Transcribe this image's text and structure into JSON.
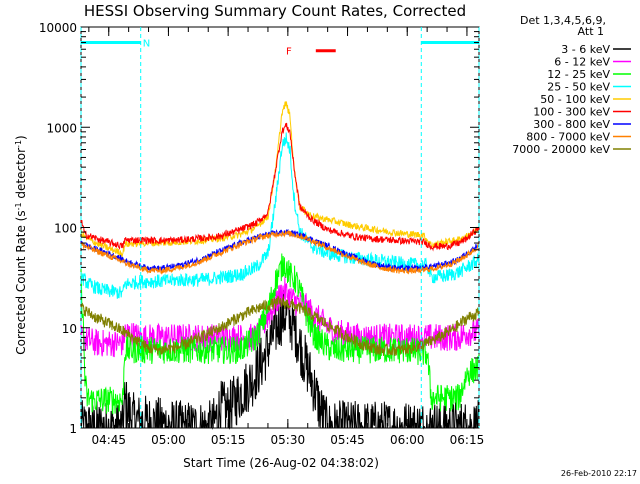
{
  "chart_data": {
    "type": "line",
    "title": "HESSI Observing Summary Count Rates, Corrected",
    "xlabel": "Start Time (26-Aug-02 04:38:02)",
    "ylabel": "Corrected Count Rate (s-1 detector-1)",
    "ylabel_parts": {
      "main": "Corrected Count Rate (s",
      "sup1": "-1",
      "mid": " detector",
      "sup2": "-1",
      "end": ")"
    },
    "x_unit": "minutes after 04:38:02 UT",
    "xlim": [
      0,
      100
    ],
    "ylim": [
      1,
      10000
    ],
    "yscale": "log",
    "x_ticks": [
      {
        "x": 6.97,
        "label": "04:45"
      },
      {
        "x": 21.97,
        "label": "05:00"
      },
      {
        "x": 36.97,
        "label": "05:15"
      },
      {
        "x": 51.97,
        "label": "05:30"
      },
      {
        "x": 66.97,
        "label": "05:45"
      },
      {
        "x": 81.97,
        "label": "06:00"
      },
      {
        "x": 96.97,
        "label": "06:15"
      }
    ],
    "y_ticks": [
      {
        "y": 1,
        "label": "1"
      },
      {
        "y": 10,
        "label": "10"
      },
      {
        "y": 100,
        "label": "100"
      },
      {
        "y": 1000,
        "label": "1000"
      },
      {
        "y": 10000,
        "label": "10000"
      }
    ],
    "legend": {
      "heading_lines": [
        "Det 1,3,4,5,6,9,",
        "Att 1"
      ],
      "position": "right"
    },
    "series": [
      {
        "name": "3 - 6 keV",
        "color": "#000000",
        "points": [
          [
            0,
            1
          ],
          [
            10.5,
            1
          ],
          [
            11,
            1.8
          ],
          [
            13,
            1.2
          ],
          [
            25,
            1
          ],
          [
            33,
            1
          ],
          [
            35,
            1.6
          ],
          [
            37,
            1.5
          ],
          [
            40,
            2.2
          ],
          [
            43,
            3.0
          ],
          [
            46,
            5.0
          ],
          [
            48,
            8.0
          ],
          [
            50,
            12
          ],
          [
            51.5,
            14
          ],
          [
            52.5,
            12
          ],
          [
            54,
            9
          ],
          [
            56,
            5
          ],
          [
            58,
            3
          ],
          [
            60,
            1.6
          ],
          [
            62,
            1
          ],
          [
            100,
            1
          ]
        ]
      },
      {
        "name": "6 - 12 keV",
        "color": "#ff00ff",
        "points": [
          [
            0,
            8
          ],
          [
            4,
            7
          ],
          [
            10.5,
            7
          ],
          [
            11,
            9
          ],
          [
            15,
            8
          ],
          [
            20,
            8
          ],
          [
            30,
            8
          ],
          [
            40,
            8
          ],
          [
            44,
            8
          ],
          [
            47,
            13
          ],
          [
            49,
            18
          ],
          [
            51,
            24
          ],
          [
            52,
            21
          ],
          [
            54,
            18
          ],
          [
            56,
            17
          ],
          [
            58,
            14
          ],
          [
            61,
            11
          ],
          [
            64,
            9
          ],
          [
            70,
            8
          ],
          [
            82,
            8
          ],
          [
            90,
            8
          ],
          [
            95,
            8
          ],
          [
            97,
            9
          ],
          [
            100,
            9
          ]
        ]
      },
      {
        "name": "12 - 25 keV",
        "color": "#00ff00",
        "points": [
          [
            0,
            30
          ],
          [
            0.6,
            10
          ],
          [
            1,
            3
          ],
          [
            1.5,
            2
          ],
          [
            3,
            1.9
          ],
          [
            10.5,
            1.9
          ],
          [
            11,
            6
          ],
          [
            20,
            6
          ],
          [
            30,
            6
          ],
          [
            40,
            6
          ],
          [
            44,
            8
          ],
          [
            47,
            15
          ],
          [
            49,
            30
          ],
          [
            51,
            45
          ],
          [
            52.5,
            33
          ],
          [
            54,
            30
          ],
          [
            55.5,
            20
          ],
          [
            57,
            12
          ],
          [
            59,
            8
          ],
          [
            63,
            6
          ],
          [
            70,
            6
          ],
          [
            82,
            6
          ],
          [
            87,
            5.5
          ],
          [
            88,
            2
          ],
          [
            95,
            2
          ],
          [
            97,
            3.5
          ],
          [
            100,
            4
          ]
        ]
      },
      {
        "name": "25 - 50 keV",
        "color": "#00ffff",
        "points": [
          [
            0,
            32
          ],
          [
            2,
            27
          ],
          [
            5,
            24
          ],
          [
            10.5,
            22
          ],
          [
            11,
            27
          ],
          [
            15,
            29
          ],
          [
            20,
            29
          ],
          [
            25,
            30
          ],
          [
            30,
            30
          ],
          [
            36,
            32
          ],
          [
            40,
            34
          ],
          [
            44,
            40
          ],
          [
            47,
            55
          ],
          [
            49,
            200
          ],
          [
            50.5,
            650
          ],
          [
            51.5,
            780
          ],
          [
            52.5,
            600
          ],
          [
            53.5,
            200
          ],
          [
            55,
            90
          ],
          [
            58,
            65
          ],
          [
            62,
            55
          ],
          [
            68,
            50
          ],
          [
            72,
            48
          ],
          [
            78,
            45
          ],
          [
            82,
            43
          ],
          [
            87,
            42
          ],
          [
            88,
            32
          ],
          [
            92,
            33
          ],
          [
            95,
            36
          ],
          [
            97,
            40
          ],
          [
            100,
            48
          ]
        ]
      },
      {
        "name": "50 - 100 keV",
        "color": "#ffcc00",
        "points": [
          [
            0,
            90
          ],
          [
            1,
            80
          ],
          [
            5,
            66
          ],
          [
            10.5,
            55
          ],
          [
            11,
            68
          ],
          [
            15,
            70
          ],
          [
            20,
            70
          ],
          [
            25,
            72
          ],
          [
            30,
            74
          ],
          [
            35,
            78
          ],
          [
            40,
            85
          ],
          [
            44,
            100
          ],
          [
            47,
            130
          ],
          [
            49,
            400
          ],
          [
            50.5,
            1400
          ],
          [
            51.5,
            1750
          ],
          [
            52.5,
            1300
          ],
          [
            53.5,
            400
          ],
          [
            55,
            160
          ],
          [
            58,
            130
          ],
          [
            62,
            120
          ],
          [
            68,
            105
          ],
          [
            72,
            98
          ],
          [
            78,
            90
          ],
          [
            82,
            86
          ],
          [
            86,
            84
          ],
          [
            88,
            67
          ],
          [
            92,
            72
          ],
          [
            95,
            76
          ],
          [
            97,
            82
          ],
          [
            100,
            95
          ]
        ]
      },
      {
        "name": "100 - 300 keV",
        "color": "#ff0000",
        "points": [
          [
            0,
            120
          ],
          [
            1,
            85
          ],
          [
            5,
            75
          ],
          [
            10.5,
            65
          ],
          [
            11,
            75
          ],
          [
            15,
            75
          ],
          [
            20,
            74
          ],
          [
            25,
            75
          ],
          [
            30,
            78
          ],
          [
            35,
            82
          ],
          [
            40,
            95
          ],
          [
            44,
            110
          ],
          [
            47,
            140
          ],
          [
            49,
            400
          ],
          [
            50.5,
            900
          ],
          [
            51.5,
            1050
          ],
          [
            52.5,
            900
          ],
          [
            53.5,
            400
          ],
          [
            55,
            160
          ],
          [
            58,
            120
          ],
          [
            62,
            95
          ],
          [
            68,
            82
          ],
          [
            72,
            78
          ],
          [
            78,
            75
          ],
          [
            82,
            73
          ],
          [
            86,
            72
          ],
          [
            88,
            65
          ],
          [
            92,
            65
          ],
          [
            95,
            70
          ],
          [
            97,
            78
          ],
          [
            100,
            100
          ]
        ]
      },
      {
        "name": "300 - 800 keV",
        "color": "#0000ff",
        "points": [
          [
            0,
            70
          ],
          [
            3,
            62
          ],
          [
            7,
            55
          ],
          [
            12,
            45
          ],
          [
            16,
            40
          ],
          [
            20,
            39
          ],
          [
            25,
            42
          ],
          [
            30,
            48
          ],
          [
            35,
            58
          ],
          [
            40,
            70
          ],
          [
            45,
            82
          ],
          [
            49,
            88
          ],
          [
            51,
            90
          ],
          [
            53,
            88
          ],
          [
            56,
            82
          ],
          [
            60,
            70
          ],
          [
            65,
            58
          ],
          [
            70,
            48
          ],
          [
            75,
            42
          ],
          [
            80,
            39
          ],
          [
            85,
            39
          ],
          [
            90,
            42
          ],
          [
            94,
            46
          ],
          [
            97,
            55
          ],
          [
            100,
            68
          ]
        ]
      },
      {
        "name": "800 - 7000 keV",
        "color": "#ff8000",
        "points": [
          [
            0,
            68
          ],
          [
            3,
            60
          ],
          [
            7,
            52
          ],
          [
            12,
            43
          ],
          [
            16,
            38
          ],
          [
            20,
            37
          ],
          [
            25,
            40
          ],
          [
            30,
            46
          ],
          [
            35,
            56
          ],
          [
            40,
            68
          ],
          [
            45,
            80
          ],
          [
            49,
            86
          ],
          [
            51,
            88
          ],
          [
            53,
            86
          ],
          [
            56,
            80
          ],
          [
            60,
            68
          ],
          [
            65,
            56
          ],
          [
            70,
            46
          ],
          [
            75,
            40
          ],
          [
            80,
            37
          ],
          [
            85,
            37
          ],
          [
            90,
            40
          ],
          [
            94,
            45
          ],
          [
            97,
            53
          ],
          [
            100,
            66
          ]
        ]
      },
      {
        "name": "7000 - 20000 keV",
        "color": "#808000",
        "points": [
          [
            0,
            16
          ],
          [
            2,
            14
          ],
          [
            4,
            12.5
          ],
          [
            6,
            11.5
          ],
          [
            8,
            10.5
          ],
          [
            10,
            9.5
          ],
          [
            12,
            8.5
          ],
          [
            15,
            7
          ],
          [
            17,
            6.2
          ],
          [
            20,
            6
          ],
          [
            25,
            6.5
          ],
          [
            30,
            8
          ],
          [
            35,
            10
          ],
          [
            40,
            13
          ],
          [
            45,
            16
          ],
          [
            50,
            18
          ],
          [
            53,
            17
          ],
          [
            56,
            15
          ],
          [
            60,
            12
          ],
          [
            65,
            9
          ],
          [
            70,
            7
          ],
          [
            75,
            6
          ],
          [
            80,
            6
          ],
          [
            85,
            6.5
          ],
          [
            90,
            8
          ],
          [
            94,
            10
          ],
          [
            97,
            12.5
          ],
          [
            100,
            14
          ]
        ]
      }
    ],
    "annotations": [
      {
        "label": "N",
        "color": "#00ffff",
        "x": 15,
        "y": 7000
      },
      {
        "label": "F",
        "color": "#ff0000",
        "x": 51,
        "y": 5800
      }
    ],
    "night_intervals": [
      {
        "start": 0,
        "end": 15
      },
      {
        "start": 85.5,
        "end": 100
      }
    ],
    "flare_interval": {
      "start": 59,
      "end": 64
    }
  },
  "footer_date": "26-Feb-2010 22:17"
}
